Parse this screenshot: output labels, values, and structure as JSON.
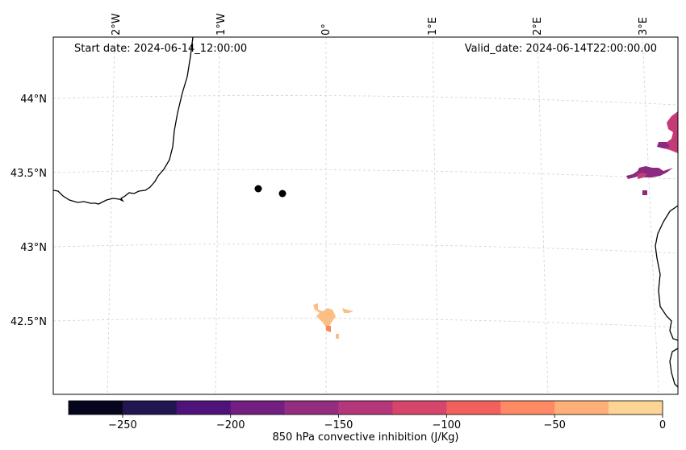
{
  "map": {
    "start_date": "Start date: 2024-06-14_12:00:00",
    "valid_date": "Valid_date: 2024-06-14T22:00:00.00",
    "lon_labels": [
      "2°W",
      "1°W",
      "0°",
      "1°E",
      "2°E",
      "3°E"
    ],
    "lat_labels": [
      "44°N",
      "43.5°N",
      "43°N",
      "42.5°N"
    ],
    "markers": [
      {
        "name": "marker-1",
        "lon": -0.64,
        "lat": 43.39
      },
      {
        "name": "marker-2",
        "lon": -0.42,
        "lat": 43.36
      }
    ],
    "fields": {
      "patch_colors": {
        "orange": "#fdbe85",
        "pink": "#d94f6e",
        "purple": "#8c2981"
      }
    }
  },
  "colorbar": {
    "label": "850 hPa convective inhibition (J/Kg)",
    "ticks": [
      "−250",
      "−200",
      "−150",
      "−100",
      "−50",
      "0"
    ],
    "range": [
      -275,
      0
    ],
    "levels": [
      -275,
      -250,
      -225,
      -200,
      -175,
      -150,
      -125,
      -100,
      -75,
      -50,
      -25,
      0
    ],
    "colors": [
      "#000004",
      "#1d1147",
      "#51127c",
      "#822681",
      "#b63679",
      "#e65164",
      "#fb8861",
      "#fec287",
      "#fcfdbf",
      "#fcfdbf",
      "#fcfdbf"
    ],
    "bin_colors": [
      "#05051d",
      "#221550",
      "#4f127b",
      "#721f81",
      "#942c80",
      "#b5367a",
      "#d6456c",
      "#f1605d",
      "#fd8a64",
      "#feb078",
      "#fcd494"
    ]
  }
}
